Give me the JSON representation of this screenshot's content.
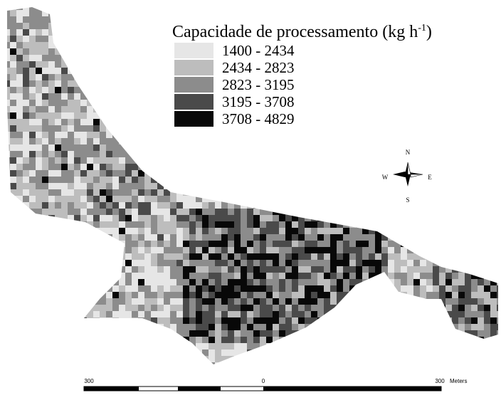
{
  "legend": {
    "title": "Capacidade de processamento (kg h",
    "title_superscript": "-1",
    "title_end": ")",
    "entries": [
      {
        "label": "1400 - 2434",
        "color": "#e6e6e6"
      },
      {
        "label": "2434 - 2823",
        "color": "#bdbdbd"
      },
      {
        "label": "2823 - 3195",
        "color": "#8c8c8c"
      },
      {
        "label": "3195 - 3708",
        "color": "#4a4a4a"
      },
      {
        "label": "3708 - 4829",
        "color": "#080808"
      }
    ]
  },
  "compass": {
    "north": "N",
    "south": "S",
    "east": "E",
    "west": "W"
  },
  "scale_bar": {
    "left": "300",
    "center": "0",
    "right": "300",
    "unit": "Meters"
  }
}
